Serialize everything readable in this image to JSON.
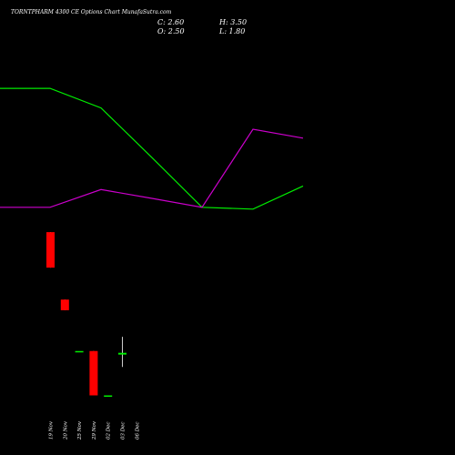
{
  "header": {
    "title": "TORNTPHARM 4300 CE Options Chart MunafaSutra.com",
    "close_label": "C: 2.60",
    "high_label": "H: 3.50",
    "open_label": "O: 2.50",
    "low_label": "L: 1.80"
  },
  "chart_data": {
    "type": "candlestick",
    "title": "TORNTPHARM 4300 CE Options Chart MunafaSutra.com",
    "dates": [
      "19 Nov",
      "20 Nov",
      "25 Nov",
      "29 Nov",
      "02 Dec",
      "03 Dec",
      "06 Dec"
    ],
    "candles": [
      {
        "date": "19 Nov",
        "open": 9.4,
        "high": 9.4,
        "low": 7.4,
        "close": 7.4
      },
      {
        "date": "20 Nov",
        "open": 5.6,
        "high": 5.6,
        "low": 5.0,
        "close": 5.0
      },
      {
        "date": "25 Nov",
        "open": 2.7,
        "high": 2.7,
        "low": 2.7,
        "close": 2.7
      },
      {
        "date": "29 Nov",
        "open": 2.7,
        "high": 2.7,
        "low": 0.2,
        "close": 0.2
      },
      {
        "date": "02 Dec",
        "open": 0.2,
        "high": 0.2,
        "low": 0.2,
        "close": 0.2
      },
      {
        "date": "03 Dec",
        "open": 2.5,
        "high": 3.5,
        "low": 1.8,
        "close": 2.6
      }
    ],
    "series": [
      {
        "color": "#00ee00",
        "points": [
          17.5,
          17.5,
          16.4,
          13.6,
          10.8,
          10.7,
          12.0
        ]
      },
      {
        "color": "#cc00cc",
        "points": [
          10.8,
          10.8,
          11.8,
          11.3,
          10.8,
          15.2,
          14.7
        ]
      }
    ],
    "colors": {
      "up": "#00ee00",
      "down": "#ff0000",
      "background": "#000000",
      "wick": "#ffffff"
    }
  }
}
